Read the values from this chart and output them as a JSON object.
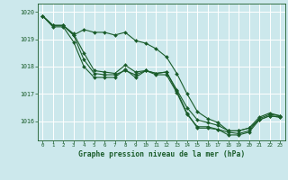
{
  "title": "Graphe pression niveau de la mer (hPa)",
  "bg_color": "#cce8ec",
  "grid_color": "#ffffff",
  "line_color": "#1a5c2a",
  "xlim": [
    -0.5,
    23.5
  ],
  "ylim": [
    1015.3,
    1020.3
  ],
  "yticks": [
    1016,
    1017,
    1018,
    1019,
    1020
  ],
  "xticks": [
    0,
    1,
    2,
    3,
    4,
    5,
    6,
    7,
    8,
    9,
    10,
    11,
    12,
    13,
    14,
    15,
    16,
    17,
    18,
    19,
    20,
    21,
    22,
    23
  ],
  "series": [
    [
      1019.85,
      1019.5,
      1019.5,
      1019.15,
      1018.25,
      1017.75,
      1017.7,
      1017.7,
      1017.85,
      1017.7,
      1017.85,
      1017.75,
      1017.8,
      1017.1,
      1016.3,
      1015.75,
      1015.75,
      1015.7,
      1015.6,
      1015.55,
      1015.65,
      1016.1,
      1016.25,
      1016.2
    ],
    [
      1019.85,
      1019.45,
      1019.45,
      1018.9,
      1018.0,
      1017.6,
      1017.6,
      1017.6,
      1017.9,
      1017.6,
      1017.85,
      1017.7,
      1017.7,
      1017.05,
      1016.25,
      1015.8,
      1015.8,
      1015.7,
      1015.5,
      1015.5,
      1015.6,
      1016.05,
      1016.2,
      1016.15
    ],
    [
      1019.85,
      1019.5,
      1019.5,
      1019.2,
      1018.5,
      1017.85,
      1017.8,
      1017.75,
      1018.05,
      1017.8,
      1017.85,
      1017.75,
      1017.8,
      1017.15,
      1016.5,
      1016.05,
      1015.95,
      1015.85,
      1015.65,
      1015.65,
      1015.75,
      1016.15,
      1016.3,
      1016.2
    ],
    [
      1019.85,
      1019.5,
      1019.5,
      1019.15,
      1019.35,
      1019.25,
      1019.25,
      1019.15,
      1019.25,
      1018.95,
      1018.85,
      1018.65,
      1018.35,
      1017.75,
      1017.0,
      1016.35,
      1016.1,
      1015.95,
      1015.65,
      1015.65,
      1015.75,
      1016.05,
      1016.2,
      1016.15
    ]
  ]
}
